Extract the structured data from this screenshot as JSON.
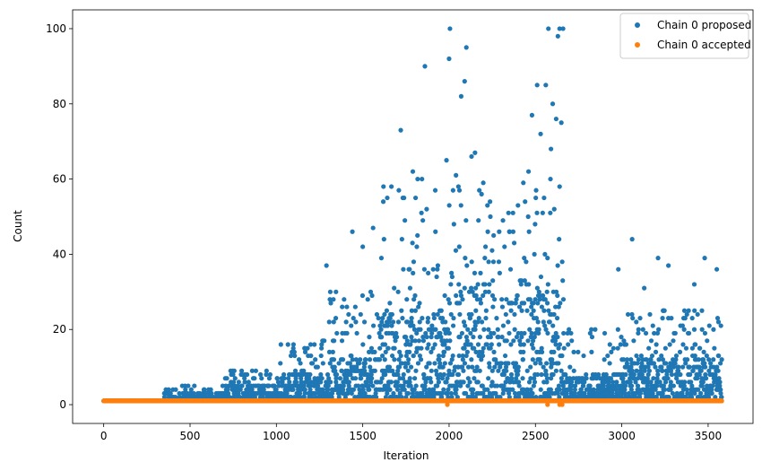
{
  "chart_data": {
    "type": "scatter",
    "title": "",
    "xlabel": "Iteration",
    "ylabel": "Count",
    "xlim": [
      -180,
      3760
    ],
    "ylim": [
      -5,
      105
    ],
    "x_ticks": [
      0,
      500,
      1000,
      1500,
      2000,
      2500,
      3000,
      3500
    ],
    "y_ticks": [
      0,
      20,
      40,
      60,
      80,
      100
    ],
    "grid": false,
    "legend_position": "top-right",
    "n_iterations": 3580,
    "series": [
      {
        "name": "Chain 0 proposed",
        "color": "#1f77b4",
        "baseline_value": 1,
        "bands": [
          {
            "x_range": [
              0,
              350
            ],
            "typical_max": 1,
            "occasional_max": 1,
            "density": 0.0
          },
          {
            "x_range": [
              350,
              700
            ],
            "typical_max": 3,
            "occasional_max": 5,
            "density": 0.5
          },
          {
            "x_range": [
              700,
              1000
            ],
            "typical_max": 5,
            "occasional_max": 9,
            "density": 0.85
          },
          {
            "x_range": [
              1000,
              1300
            ],
            "typical_max": 8,
            "occasional_max": 17,
            "density": 0.9
          },
          {
            "x_range": [
              1300,
              1600
            ],
            "typical_max": 12,
            "occasional_max": 30,
            "density": 0.95
          },
          {
            "x_range": [
              1600,
              2000
            ],
            "typical_max": 25,
            "occasional_max": 60,
            "density": 0.95
          },
          {
            "x_range": [
              2000,
              2250
            ],
            "typical_max": 30,
            "occasional_max": 60,
            "density": 0.95
          },
          {
            "x_range": [
              2250,
              2670
            ],
            "typical_max": 30,
            "occasional_max": 60,
            "density": 0.95
          },
          {
            "x_range": [
              2670,
              3000
            ],
            "typical_max": 8,
            "occasional_max": 20,
            "density": 0.9
          },
          {
            "x_range": [
              3000,
              3580
            ],
            "typical_max": 12,
            "occasional_max": 25,
            "density": 0.95
          }
        ],
        "outliers": [
          {
            "x": 1290,
            "y": 37
          },
          {
            "x": 1345,
            "y": 30
          },
          {
            "x": 1440,
            "y": 46
          },
          {
            "x": 1500,
            "y": 42
          },
          {
            "x": 1560,
            "y": 47
          },
          {
            "x": 1620,
            "y": 58
          },
          {
            "x": 1720,
            "y": 73
          },
          {
            "x": 1790,
            "y": 62
          },
          {
            "x": 1860,
            "y": 90
          },
          {
            "x": 1920,
            "y": 57
          },
          {
            "x": 1985,
            "y": 65
          },
          {
            "x": 2005,
            "y": 100
          },
          {
            "x": 2000,
            "y": 92
          },
          {
            "x": 2040,
            "y": 61
          },
          {
            "x": 2070,
            "y": 82
          },
          {
            "x": 2090,
            "y": 86
          },
          {
            "x": 2100,
            "y": 95
          },
          {
            "x": 2130,
            "y": 66
          },
          {
            "x": 2150,
            "y": 67
          },
          {
            "x": 2350,
            "y": 46
          },
          {
            "x": 2430,
            "y": 59
          },
          {
            "x": 2460,
            "y": 62
          },
          {
            "x": 2480,
            "y": 77
          },
          {
            "x": 2510,
            "y": 85
          },
          {
            "x": 2530,
            "y": 72
          },
          {
            "x": 2550,
            "y": 55
          },
          {
            "x": 2560,
            "y": 85
          },
          {
            "x": 2575,
            "y": 100
          },
          {
            "x": 2590,
            "y": 68
          },
          {
            "x": 2600,
            "y": 80
          },
          {
            "x": 2620,
            "y": 76
          },
          {
            "x": 2630,
            "y": 98
          },
          {
            "x": 2640,
            "y": 100
          },
          {
            "x": 2650,
            "y": 75
          },
          {
            "x": 2660,
            "y": 100
          },
          {
            "x": 2640,
            "y": 58
          },
          {
            "x": 3060,
            "y": 44
          },
          {
            "x": 2980,
            "y": 36
          },
          {
            "x": 3130,
            "y": 31
          },
          {
            "x": 3210,
            "y": 39
          },
          {
            "x": 3270,
            "y": 37
          },
          {
            "x": 3420,
            "y": 32
          },
          {
            "x": 3480,
            "y": 39
          },
          {
            "x": 3550,
            "y": 36
          },
          {
            "x": 3560,
            "y": 22
          }
        ]
      },
      {
        "name": "Chain 0 accepted",
        "color": "#ff7f0e",
        "baseline_value": 1,
        "x_range": [
          0,
          3580
        ],
        "outliers": [
          {
            "x": 1990,
            "y": 0
          },
          {
            "x": 2570,
            "y": 0
          },
          {
            "x": 2640,
            "y": 0
          },
          {
            "x": 2655,
            "y": 0
          }
        ]
      }
    ]
  }
}
